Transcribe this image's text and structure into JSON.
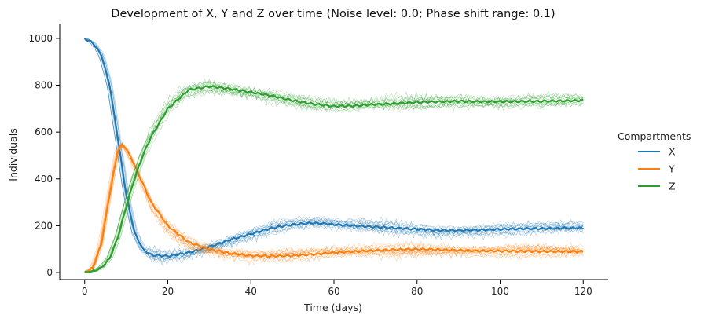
{
  "chart_data": {
    "type": "line",
    "title": "Development of X, Y and Z over time (Noise level: 0.0; Phase shift range: 0.1)",
    "xlabel": "Time (days)",
    "ylabel": "Individuals",
    "xlim": [
      -6,
      126
    ],
    "ylim": [
      -30,
      1060
    ],
    "xticks": [
      0,
      20,
      40,
      60,
      80,
      100,
      120
    ],
    "yticks": [
      0,
      200,
      400,
      600,
      800,
      1000
    ],
    "grid": false,
    "legend": {
      "title": "Compartments",
      "placement": "right",
      "entries": [
        "X",
        "Y",
        "Z"
      ]
    },
    "series": [
      {
        "name": "X",
        "color": "#1f77b4",
        "x": [
          0,
          2,
          4,
          6,
          8,
          10,
          12,
          14,
          16,
          20,
          25,
          30,
          35,
          40,
          45,
          50,
          55,
          60,
          65,
          70,
          75,
          80,
          85,
          90,
          95,
          100,
          105,
          110,
          115,
          120
        ],
        "y": [
          1000,
          980,
          930,
          800,
          570,
          330,
          170,
          100,
          75,
          70,
          85,
          110,
          140,
          165,
          190,
          205,
          212,
          205,
          200,
          195,
          190,
          185,
          180,
          180,
          182,
          185,
          187,
          188,
          190,
          190
        ]
      },
      {
        "name": "Y",
        "color": "#ff7f0e",
        "x": [
          0,
          2,
          4,
          6,
          8,
          9,
          10,
          12,
          14,
          16,
          20,
          25,
          30,
          35,
          40,
          45,
          50,
          55,
          60,
          65,
          70,
          75,
          80,
          85,
          90,
          95,
          100,
          105,
          110,
          115,
          120
        ],
        "y": [
          0,
          20,
          120,
          330,
          520,
          545,
          530,
          460,
          380,
          300,
          200,
          130,
          100,
          82,
          72,
          70,
          72,
          78,
          85,
          90,
          95,
          98,
          100,
          98,
          95,
          93,
          92,
          91,
          90,
          90,
          90
        ]
      },
      {
        "name": "Z",
        "color": "#2ca02c",
        "x": [
          0,
          2,
          4,
          6,
          8,
          10,
          12,
          14,
          16,
          20,
          25,
          30,
          35,
          40,
          45,
          50,
          55,
          60,
          65,
          70,
          75,
          80,
          85,
          90,
          95,
          100,
          105,
          110,
          115,
          120
        ],
        "y": [
          0,
          5,
          20,
          60,
          150,
          280,
          400,
          500,
          580,
          700,
          780,
          795,
          785,
          770,
          755,
          735,
          720,
          710,
          712,
          718,
          722,
          727,
          730,
          732,
          730,
          730,
          731,
          732,
          733,
          735
        ]
      }
    ]
  }
}
